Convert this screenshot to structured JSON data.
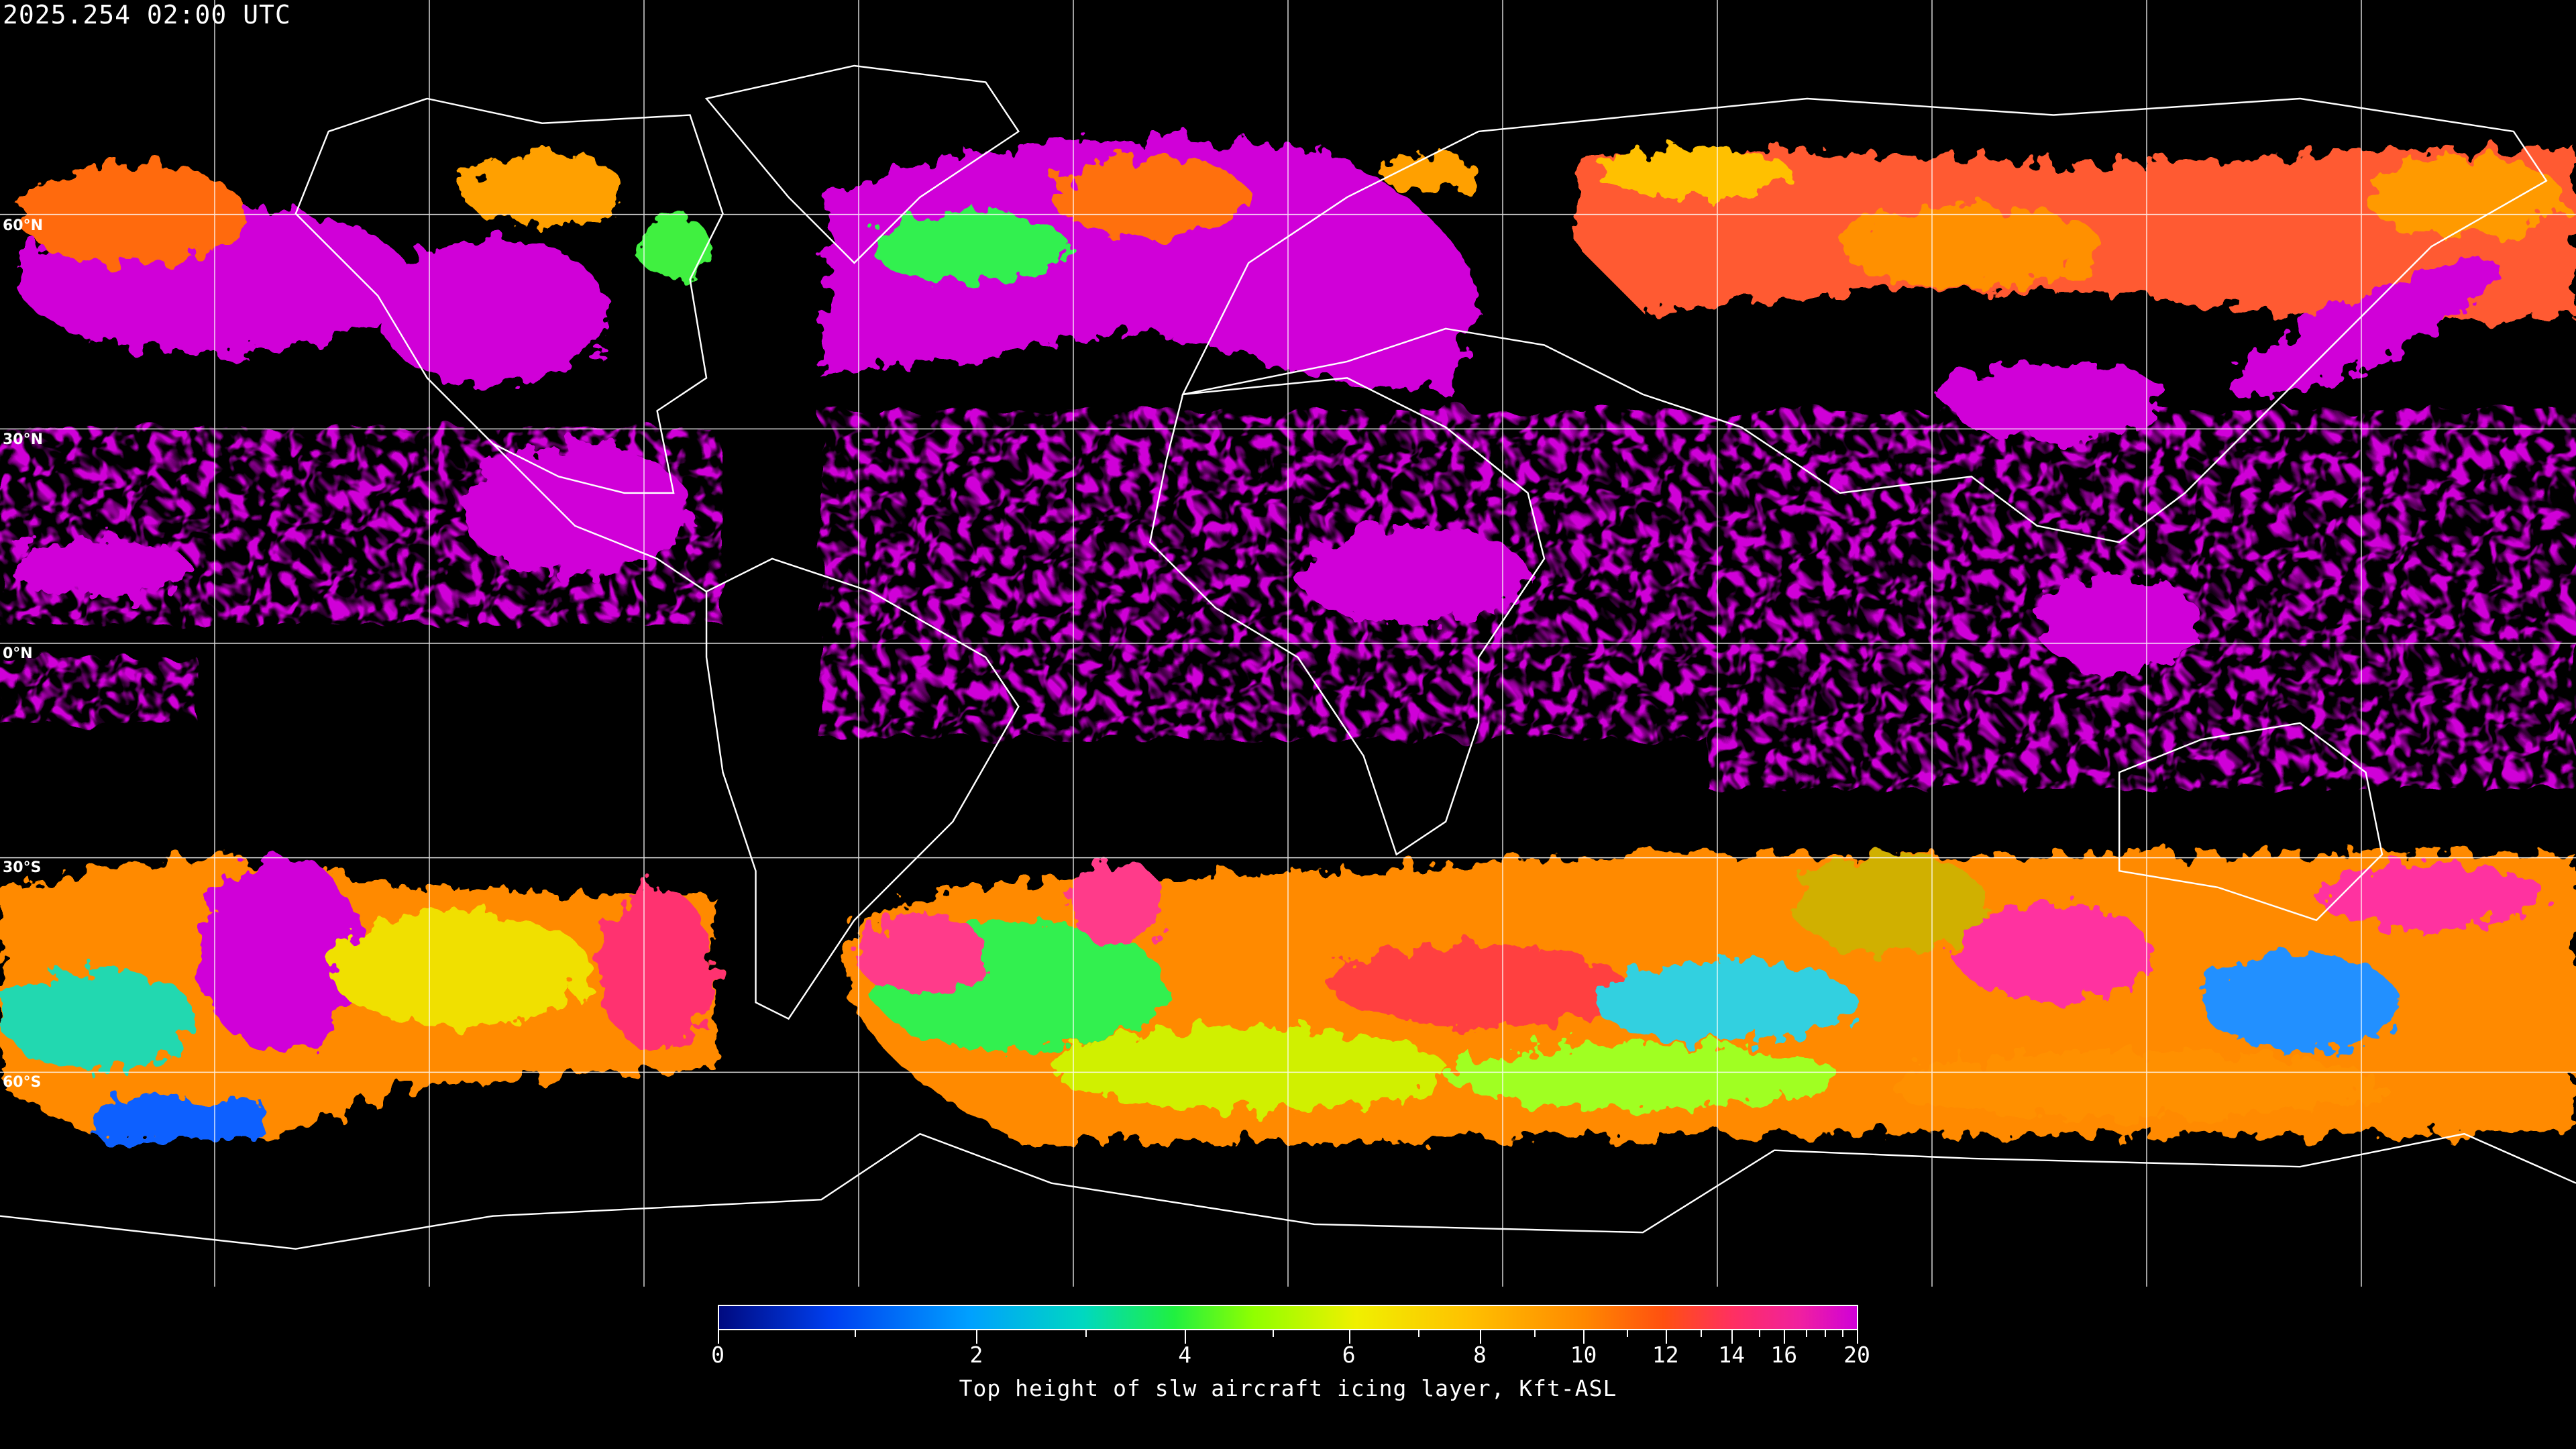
{
  "header": {
    "timestamp": "2025.254 02:00 UTC"
  },
  "map": {
    "projection": "equirectangular",
    "grid_lat_labels": [
      "60°N",
      "30°N",
      "0°N",
      "30°S",
      "60°S"
    ],
    "coastline_color": "#ffffff",
    "grid_color": "#ffffff",
    "background": "#000000"
  },
  "colorbar": {
    "label": "Top height of slw aircraft icing layer, Kft-ASL",
    "range": [
      0,
      20
    ],
    "tick_labels": [
      "0",
      "2",
      "4",
      "6",
      "8",
      "10",
      "12",
      "14",
      "16",
      "20"
    ],
    "colors": [
      "#000a80",
      "#0040f0",
      "#00a0ff",
      "#00d8c0",
      "#20f040",
      "#90ff00",
      "#f0f000",
      "#ffc000",
      "#ff8800",
      "#ff5010",
      "#ff3060",
      "#d000d8"
    ]
  }
}
